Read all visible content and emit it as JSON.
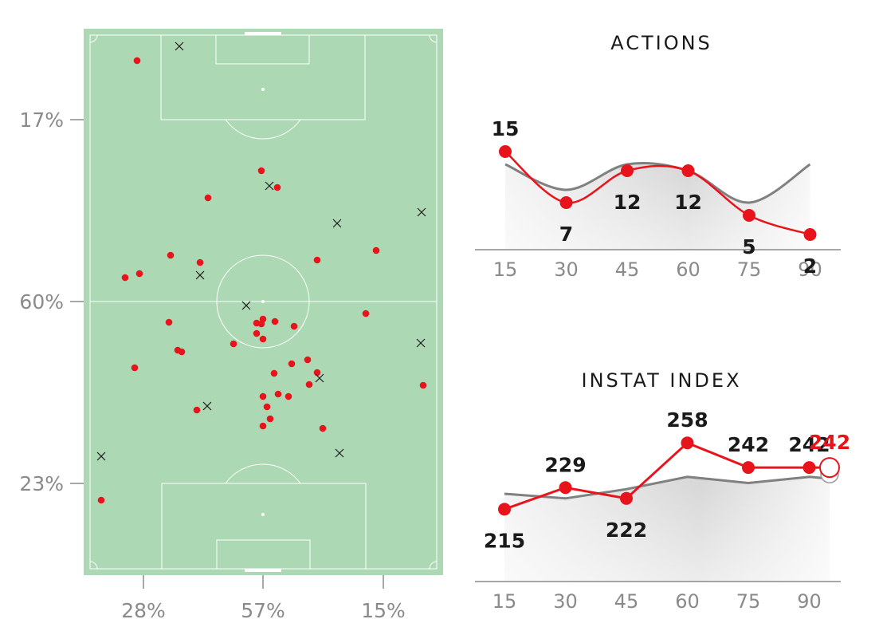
{
  "pitch": {
    "colors": {
      "grass": "#acd8b4",
      "lines": "#ffffff",
      "action": "#e8141c",
      "cross": "#1a1a1a"
    },
    "left_labels": [
      "17%",
      "60%",
      "23%"
    ],
    "bottom_labels": [
      "28%",
      "57%",
      "15%"
    ]
  },
  "chart_data": [
    {
      "type": "line",
      "title": "ACTIONS",
      "x": [
        15,
        30,
        45,
        60,
        75,
        90
      ],
      "series": [
        {
          "values": [
            15,
            7,
            12,
            12,
            5,
            2
          ],
          "color": "#e8141c"
        },
        {
          "values": [
            13,
            9,
            13,
            12,
            7,
            13
          ],
          "color": "#808080"
        }
      ],
      "ylim": [
        0,
        20
      ]
    },
    {
      "type": "line",
      "title": "INSTAT INDEX",
      "x": [
        15,
        30,
        45,
        60,
        75,
        90
      ],
      "series": [
        {
          "values": [
            215,
            229,
            222,
            258,
            242,
            242
          ],
          "color": "#e8141c"
        },
        {
          "values": [
            225,
            222,
            228,
            236,
            232,
            236
          ],
          "color": "#808080"
        }
      ],
      "current": {
        "value": 242,
        "color": "#e8141c"
      },
      "ylim": [
        180,
        300
      ]
    }
  ]
}
